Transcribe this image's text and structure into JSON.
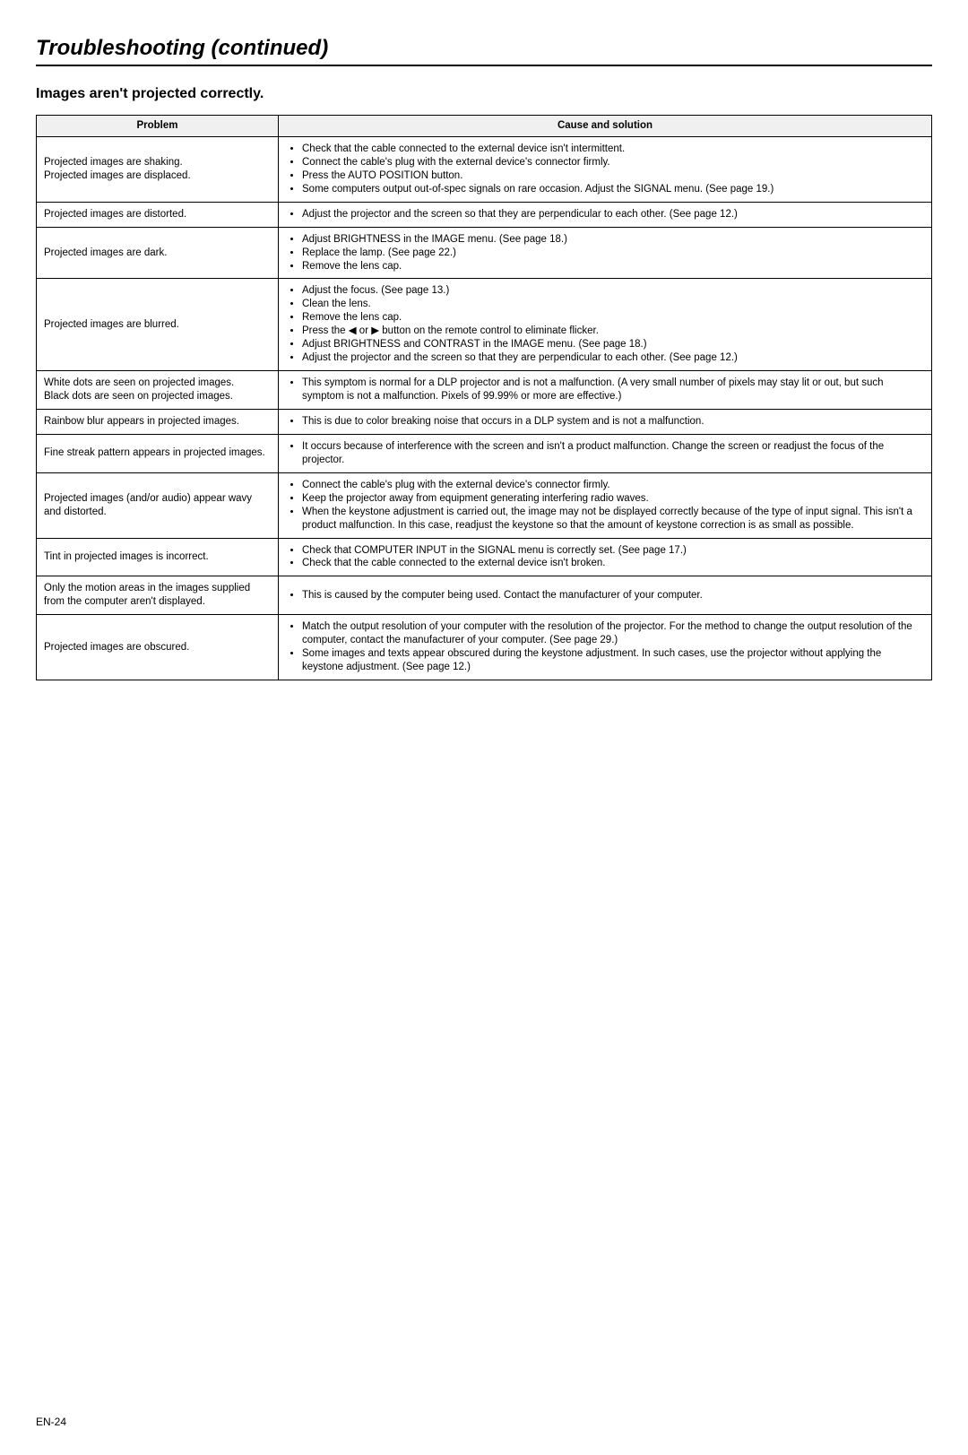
{
  "page_title": "Troubleshooting (continued)",
  "section_title": "Images aren't projected correctly.",
  "columns": {
    "problem": "Problem",
    "solution": "Cause and solution"
  },
  "rows": [
    {
      "problem": [
        "Projected images are shaking.",
        "Projected images are displaced."
      ],
      "solutions": [
        "Check that the cable connected to the external device isn't intermittent.",
        "Connect the cable's plug with the external device's connector firmly.",
        "Press the AUTO POSITION button.",
        "Some computers output out-of-spec signals on rare occasion. Adjust the SIGNAL menu. (See page 19.)"
      ]
    },
    {
      "problem": [
        "Projected images are distorted."
      ],
      "solutions": [
        "Adjust the projector and the screen so that they are perpendicular to each other. (See page 12.)"
      ]
    },
    {
      "problem": [
        "Projected images are dark."
      ],
      "solutions": [
        "Adjust BRIGHTNESS in the IMAGE menu. (See page 18.)",
        "Replace the lamp. (See page 22.)",
        "Remove the lens cap."
      ]
    },
    {
      "problem": [
        "Projected images are blurred."
      ],
      "solutions": [
        "Adjust the focus. (See page 13.)",
        "Clean the lens.",
        "Remove the lens cap.",
        "Press the ◀ or ▶ button on the remote control to eliminate flicker.",
        "Adjust BRIGHTNESS and CONTRAST in the IMAGE menu. (See page 18.)",
        "Adjust the projector and the screen so that they are perpendicular to each other. (See page 12.)"
      ]
    },
    {
      "problem": [
        "White dots are seen on projected images.",
        "Black dots are seen on projected images."
      ],
      "solutions": [
        "This symptom is normal for a DLP projector and is not a malfunction. (A very small number of pixels may stay lit or out, but such symptom is not a malfunction. Pixels of 99.99% or more are effective.)"
      ]
    },
    {
      "problem": [
        "Rainbow blur appears in projected images."
      ],
      "solutions": [
        "This is due to color breaking noise that occurs in a DLP system and is not a malfunction."
      ]
    },
    {
      "problem": [
        "Fine streak pattern appears in projected images."
      ],
      "solutions": [
        "It occurs because of interference with the screen and isn't a product malfunction. Change the screen or readjust the focus of the projector."
      ]
    },
    {
      "problem": [
        "Projected images (and/or audio) appear wavy and distorted."
      ],
      "solutions": [
        "Connect the cable's plug with the external device's connector firmly.",
        "Keep the projector away from equipment generating interfering radio waves.",
        "When the keystone adjustment is carried out, the image may not be displayed correctly because of the type of input signal. This isn't a product malfunction. In this case, readjust the keystone so that the amount of keystone correction is as small as possible."
      ]
    },
    {
      "problem": [
        "Tint in projected images is incorrect."
      ],
      "solutions": [
        "Check that COMPUTER INPUT in the SIGNAL menu is correctly set. (See page 17.)",
        "Check that the cable connected to the external device isn't broken."
      ]
    },
    {
      "problem": [
        "Only the motion areas in the images supplied from the computer aren't displayed."
      ],
      "solutions": [
        "This is caused by the computer being used. Contact the manufacturer of your computer."
      ]
    },
    {
      "problem": [
        "Projected images are obscured."
      ],
      "solutions": [
        "Match the output resolution of your computer with the resolution of the projector.  For the method to change the output resolution of the computer, contact the manufacturer of your computer. (See page 29.)",
        "Some images and texts appear obscured during the keystone adjustment. In such cases, use the projector without applying the keystone adjustment. (See page 12.)"
      ]
    }
  ],
  "page_number": "EN-24",
  "styles": {
    "background_color": "#ffffff",
    "text_color": "#000000",
    "header_bg": "#f0f0f0",
    "border_color": "#000000",
    "title_fontsize": 24,
    "section_fontsize": 16,
    "body_fontsize": 11.5,
    "problem_col_width": 270
  }
}
